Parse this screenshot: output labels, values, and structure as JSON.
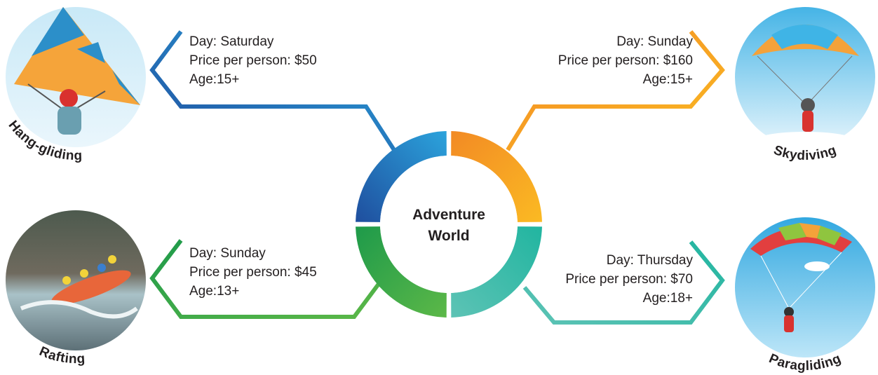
{
  "center": {
    "lines": [
      "Adventure",
      "World"
    ]
  },
  "activities": [
    {
      "name": "Hang-gliding",
      "day": "Day: Saturday",
      "price": "Price per person: $50",
      "age": "Age:15+"
    },
    {
      "name": "Skydiving",
      "day": "Day: Sunday",
      "price": "Price per person: $160",
      "age": "Age:15+"
    },
    {
      "name": "Rafting",
      "day": "Day: Sunday",
      "price": "Price per person: $45",
      "age": "Age:13+"
    },
    {
      "name": "Paragliding",
      "day": "Day: Thursday",
      "price": "Price per person: $70",
      "age": "Age:18+"
    }
  ]
}
